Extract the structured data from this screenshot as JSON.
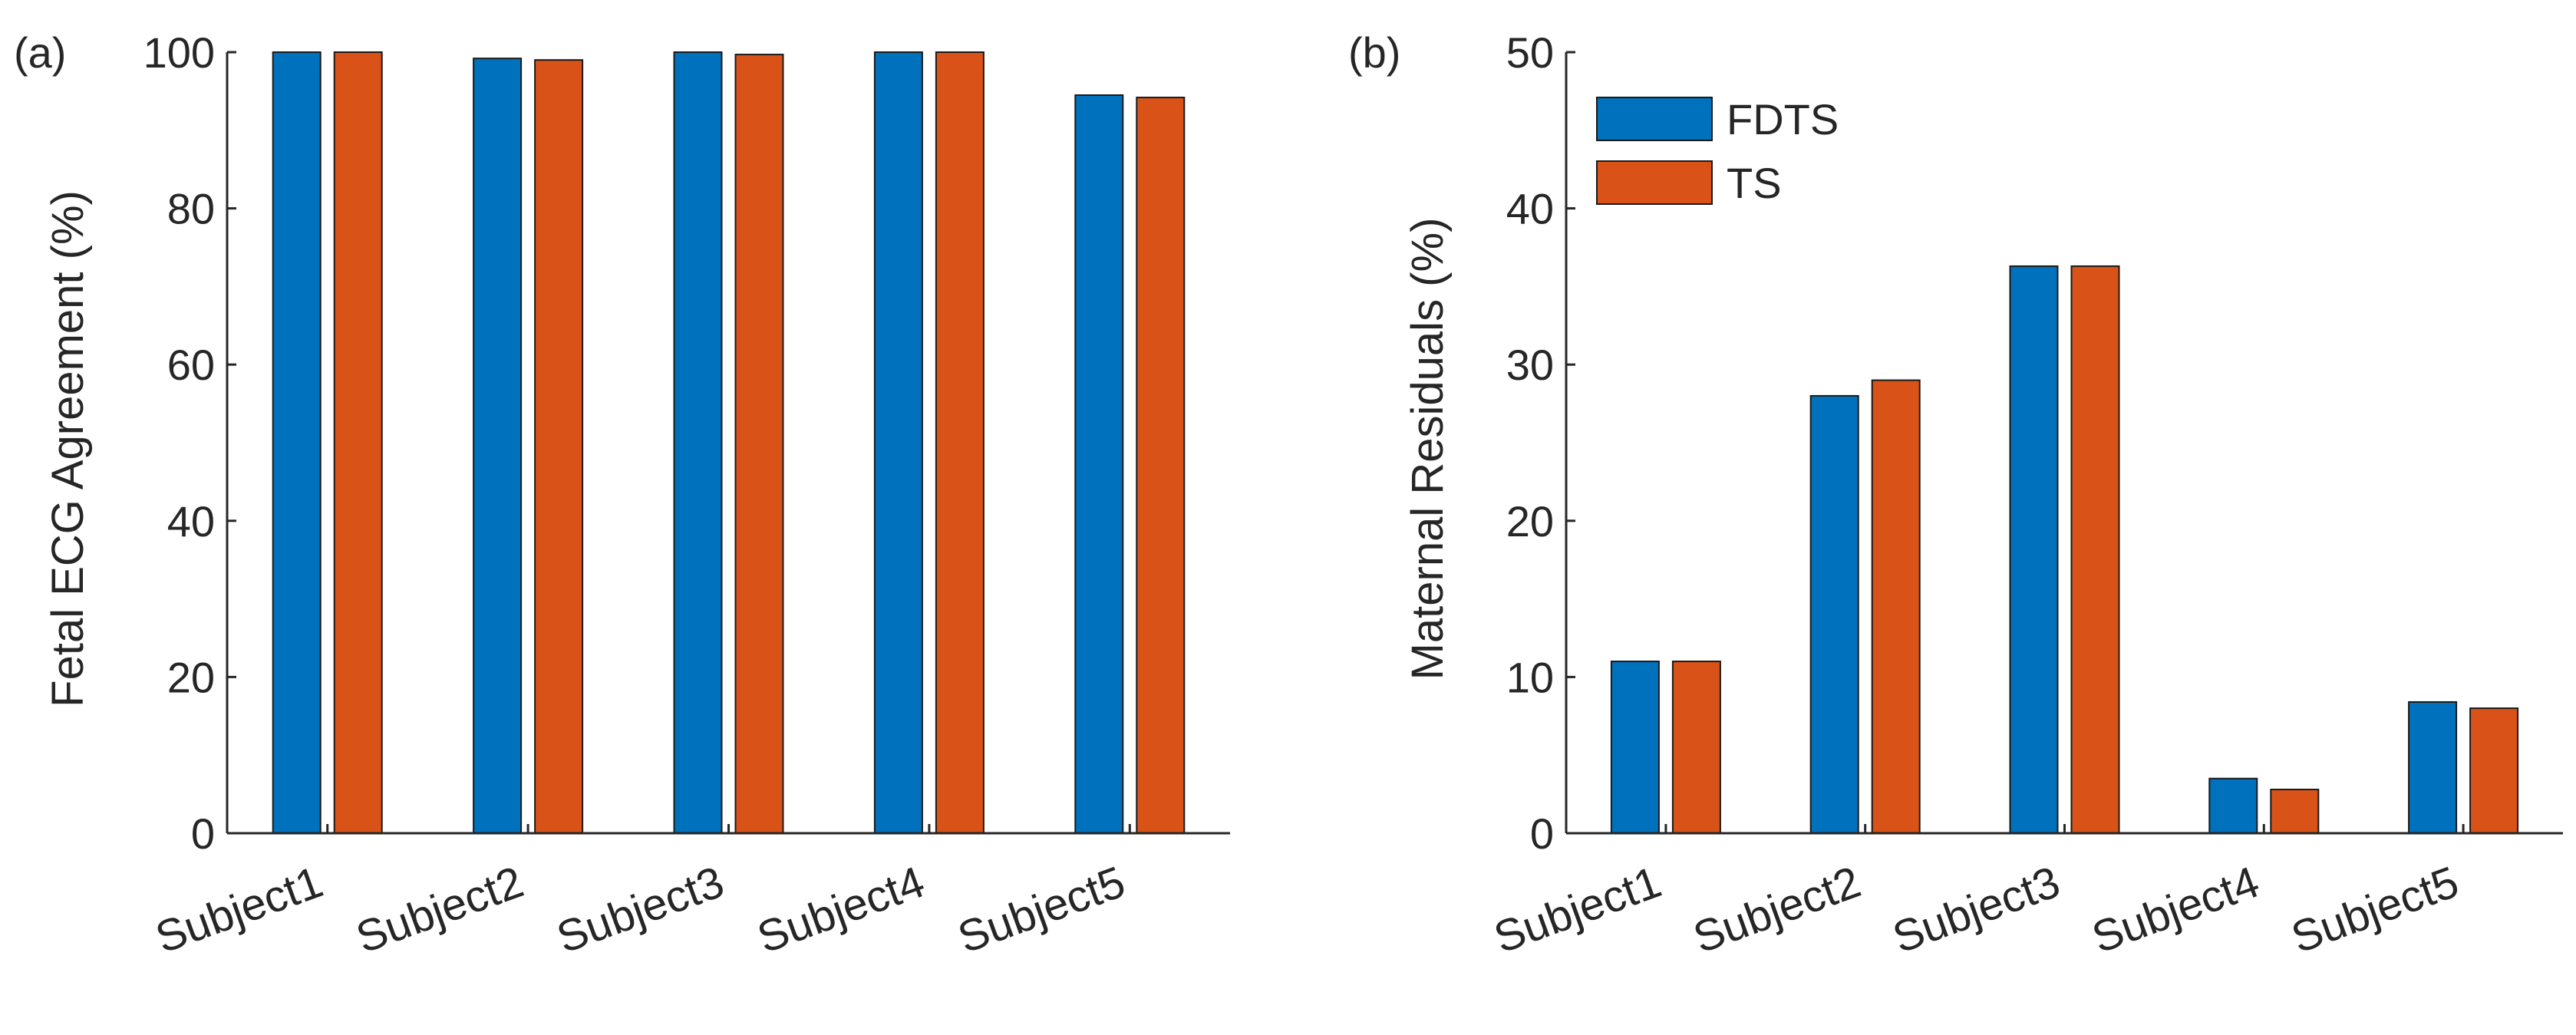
{
  "colors": {
    "series": [
      "#0072BD",
      "#D95319"
    ],
    "axis": "#262626",
    "bar_edge": "#1a1a1a"
  },
  "chart_data": [
    {
      "type": "bar",
      "panel_label": "(a)",
      "title": "",
      "xlabel": "",
      "ylabel": "Fetal ECG Agreement (%)",
      "ylim": [
        0,
        100
      ],
      "yticks": [
        0,
        20,
        40,
        60,
        80,
        100
      ],
      "grid": false,
      "legend": null,
      "categories": [
        "Subject1",
        "Subject2",
        "Subject3",
        "Subject4",
        "Subject5"
      ],
      "series": [
        {
          "name": "FDTS",
          "values": [
            100,
            99.2,
            100,
            100,
            94.5
          ]
        },
        {
          "name": "TS",
          "values": [
            100,
            99,
            99.7,
            100,
            94.2
          ]
        }
      ]
    },
    {
      "type": "bar",
      "panel_label": "(b)",
      "title": "",
      "xlabel": "",
      "ylabel": "Maternal Residuals (%)",
      "ylim": [
        0,
        50
      ],
      "yticks": [
        0,
        10,
        20,
        30,
        40,
        50
      ],
      "grid": false,
      "legend": "top-left",
      "categories": [
        "Subject1",
        "Subject2",
        "Subject3",
        "Subject4",
        "Subject5"
      ],
      "series": [
        {
          "name": "FDTS",
          "values": [
            11,
            28,
            36.3,
            3.5,
            8.4
          ]
        },
        {
          "name": "TS",
          "values": [
            11,
            29,
            36.3,
            2.8,
            8
          ]
        }
      ]
    }
  ]
}
